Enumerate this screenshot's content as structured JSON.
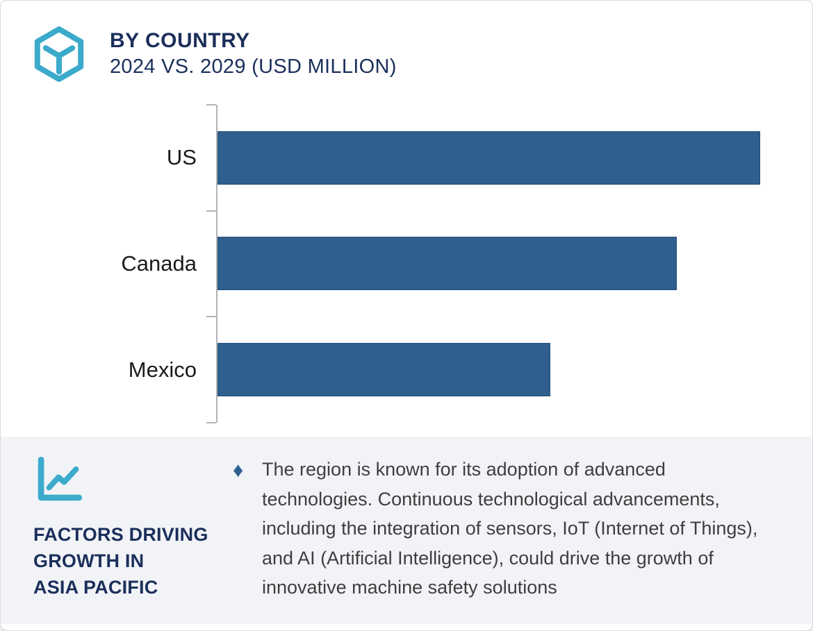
{
  "header": {
    "title": "BY COUNTRY",
    "subtitle": "2024 VS. 2029 (USD MILLION)"
  },
  "chart_data": {
    "type": "bar",
    "orientation": "horizontal",
    "title": "BY COUNTRY",
    "subtitle": "2024 VS. 2029 (USD MILLION)",
    "categories": [
      "US",
      "Canada",
      "Mexico"
    ],
    "values_relative_pct": [
      100,
      84.6,
      61.3
    ],
    "value_axis_tick_labels": [],
    "note": "No numeric value-axis labels are shown in the image; bar lengths are relative with US = 100",
    "xlabel": "",
    "ylabel": "",
    "grid": false,
    "legend": false,
    "bar_color": "#2E5F8E",
    "axis_color": "#B3B3B3"
  },
  "factors_panel": {
    "heading_lines": [
      "FACTORS DRIVING",
      "GROWTH IN",
      "ASIA PACIFIC"
    ],
    "bullet_symbol": "♦",
    "bullet_text": "The region is known for its adoption of advanced technologies. Continuous technological advancements, including the integration of sensors, IoT (Internet of Things), and AI (Artificial Intelligence), could drive the growth of innovative machine safety solutions"
  },
  "icons": {
    "header_icon": "hexagon-cube-icon",
    "panel_icon": "line-chart-icon"
  },
  "colors": {
    "navy": "#1B2F5B",
    "teal": "#3BAACB",
    "bar_blue": "#2E5F8E",
    "bar_border": "#26517D",
    "panel_gray": "#F2F3F7",
    "body_text": "#3E3E3E",
    "label_text": "#1A1A1A",
    "axis_gray": "#B3B3B3",
    "card_border": "#D8DADC",
    "card_bg": "#FFFFFF"
  }
}
